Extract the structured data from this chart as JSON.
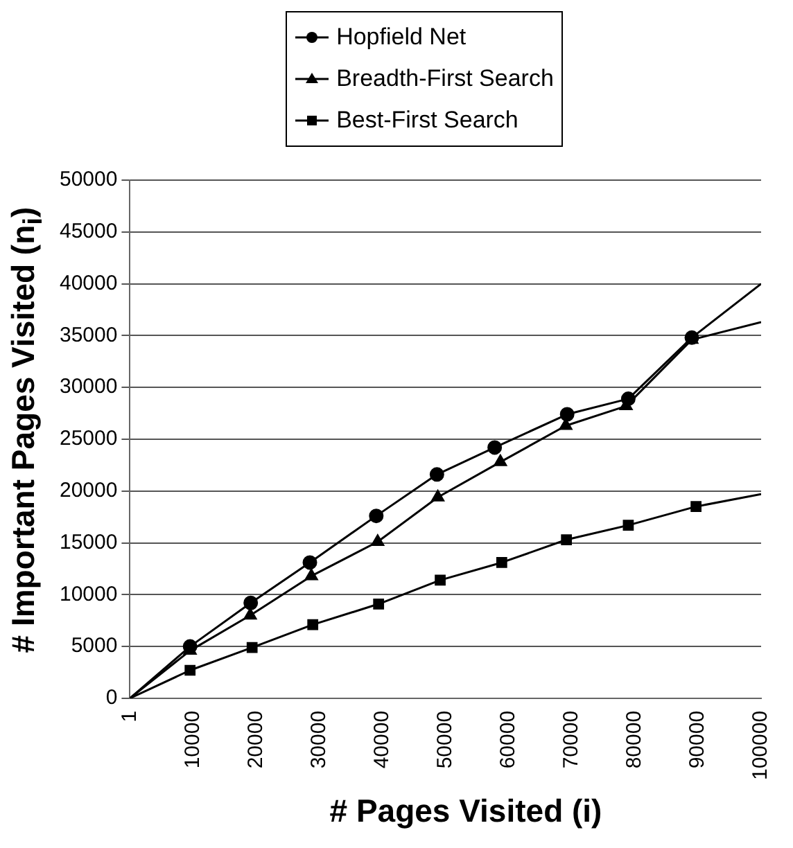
{
  "chart_data": {
    "type": "line",
    "xlabel": "# Pages Visited (i)",
    "ylabel": "# Important Pages Visited (n$_{i}$)",
    "series": [
      {
        "name": "Hopfield Net",
        "color": "#000000",
        "marker": "circle",
        "x": [
          1,
          9530,
          19140,
          28510,
          39030,
          48640,
          57790,
          69270,
          78960,
          89020,
          100000
        ],
        "values": [
          0,
          5000,
          9200,
          13100,
          17600,
          21600,
          24200,
          27400,
          28900,
          34800,
          40000
        ]
      },
      {
        "name": "Breadth-First Search",
        "color": "#000000",
        "marker": "triangle",
        "x": [
          1,
          9530,
          19060,
          28750,
          39250,
          48780,
          58690,
          69050,
          78600,
          89020,
          100000
        ],
        "values": [
          0,
          4600,
          8000,
          11800,
          15100,
          19400,
          22800,
          26300,
          28200,
          34600,
          36300
        ]
      },
      {
        "name": "Best-First Search",
        "color": "#000000",
        "marker": "square",
        "x": [
          1,
          9530,
          19360,
          28970,
          39400,
          49160,
          58910,
          69160,
          78960,
          89690,
          100000
        ],
        "values": [
          0,
          2700,
          4900,
          7100,
          9100,
          11400,
          13100,
          15300,
          16700,
          18500,
          19700
        ]
      }
    ],
    "xlim": [
      1,
      100000
    ],
    "xticks": [
      1,
      10000,
      20000,
      30000,
      40000,
      50000,
      60000,
      70000,
      80000,
      90000,
      100000
    ],
    "ylim": [
      0,
      50000
    ],
    "yticks": [
      0,
      5000,
      10000,
      15000,
      20000,
      25000,
      30000,
      35000,
      40000,
      45000,
      50000
    ],
    "grid": "y",
    "legend": "top"
  }
}
